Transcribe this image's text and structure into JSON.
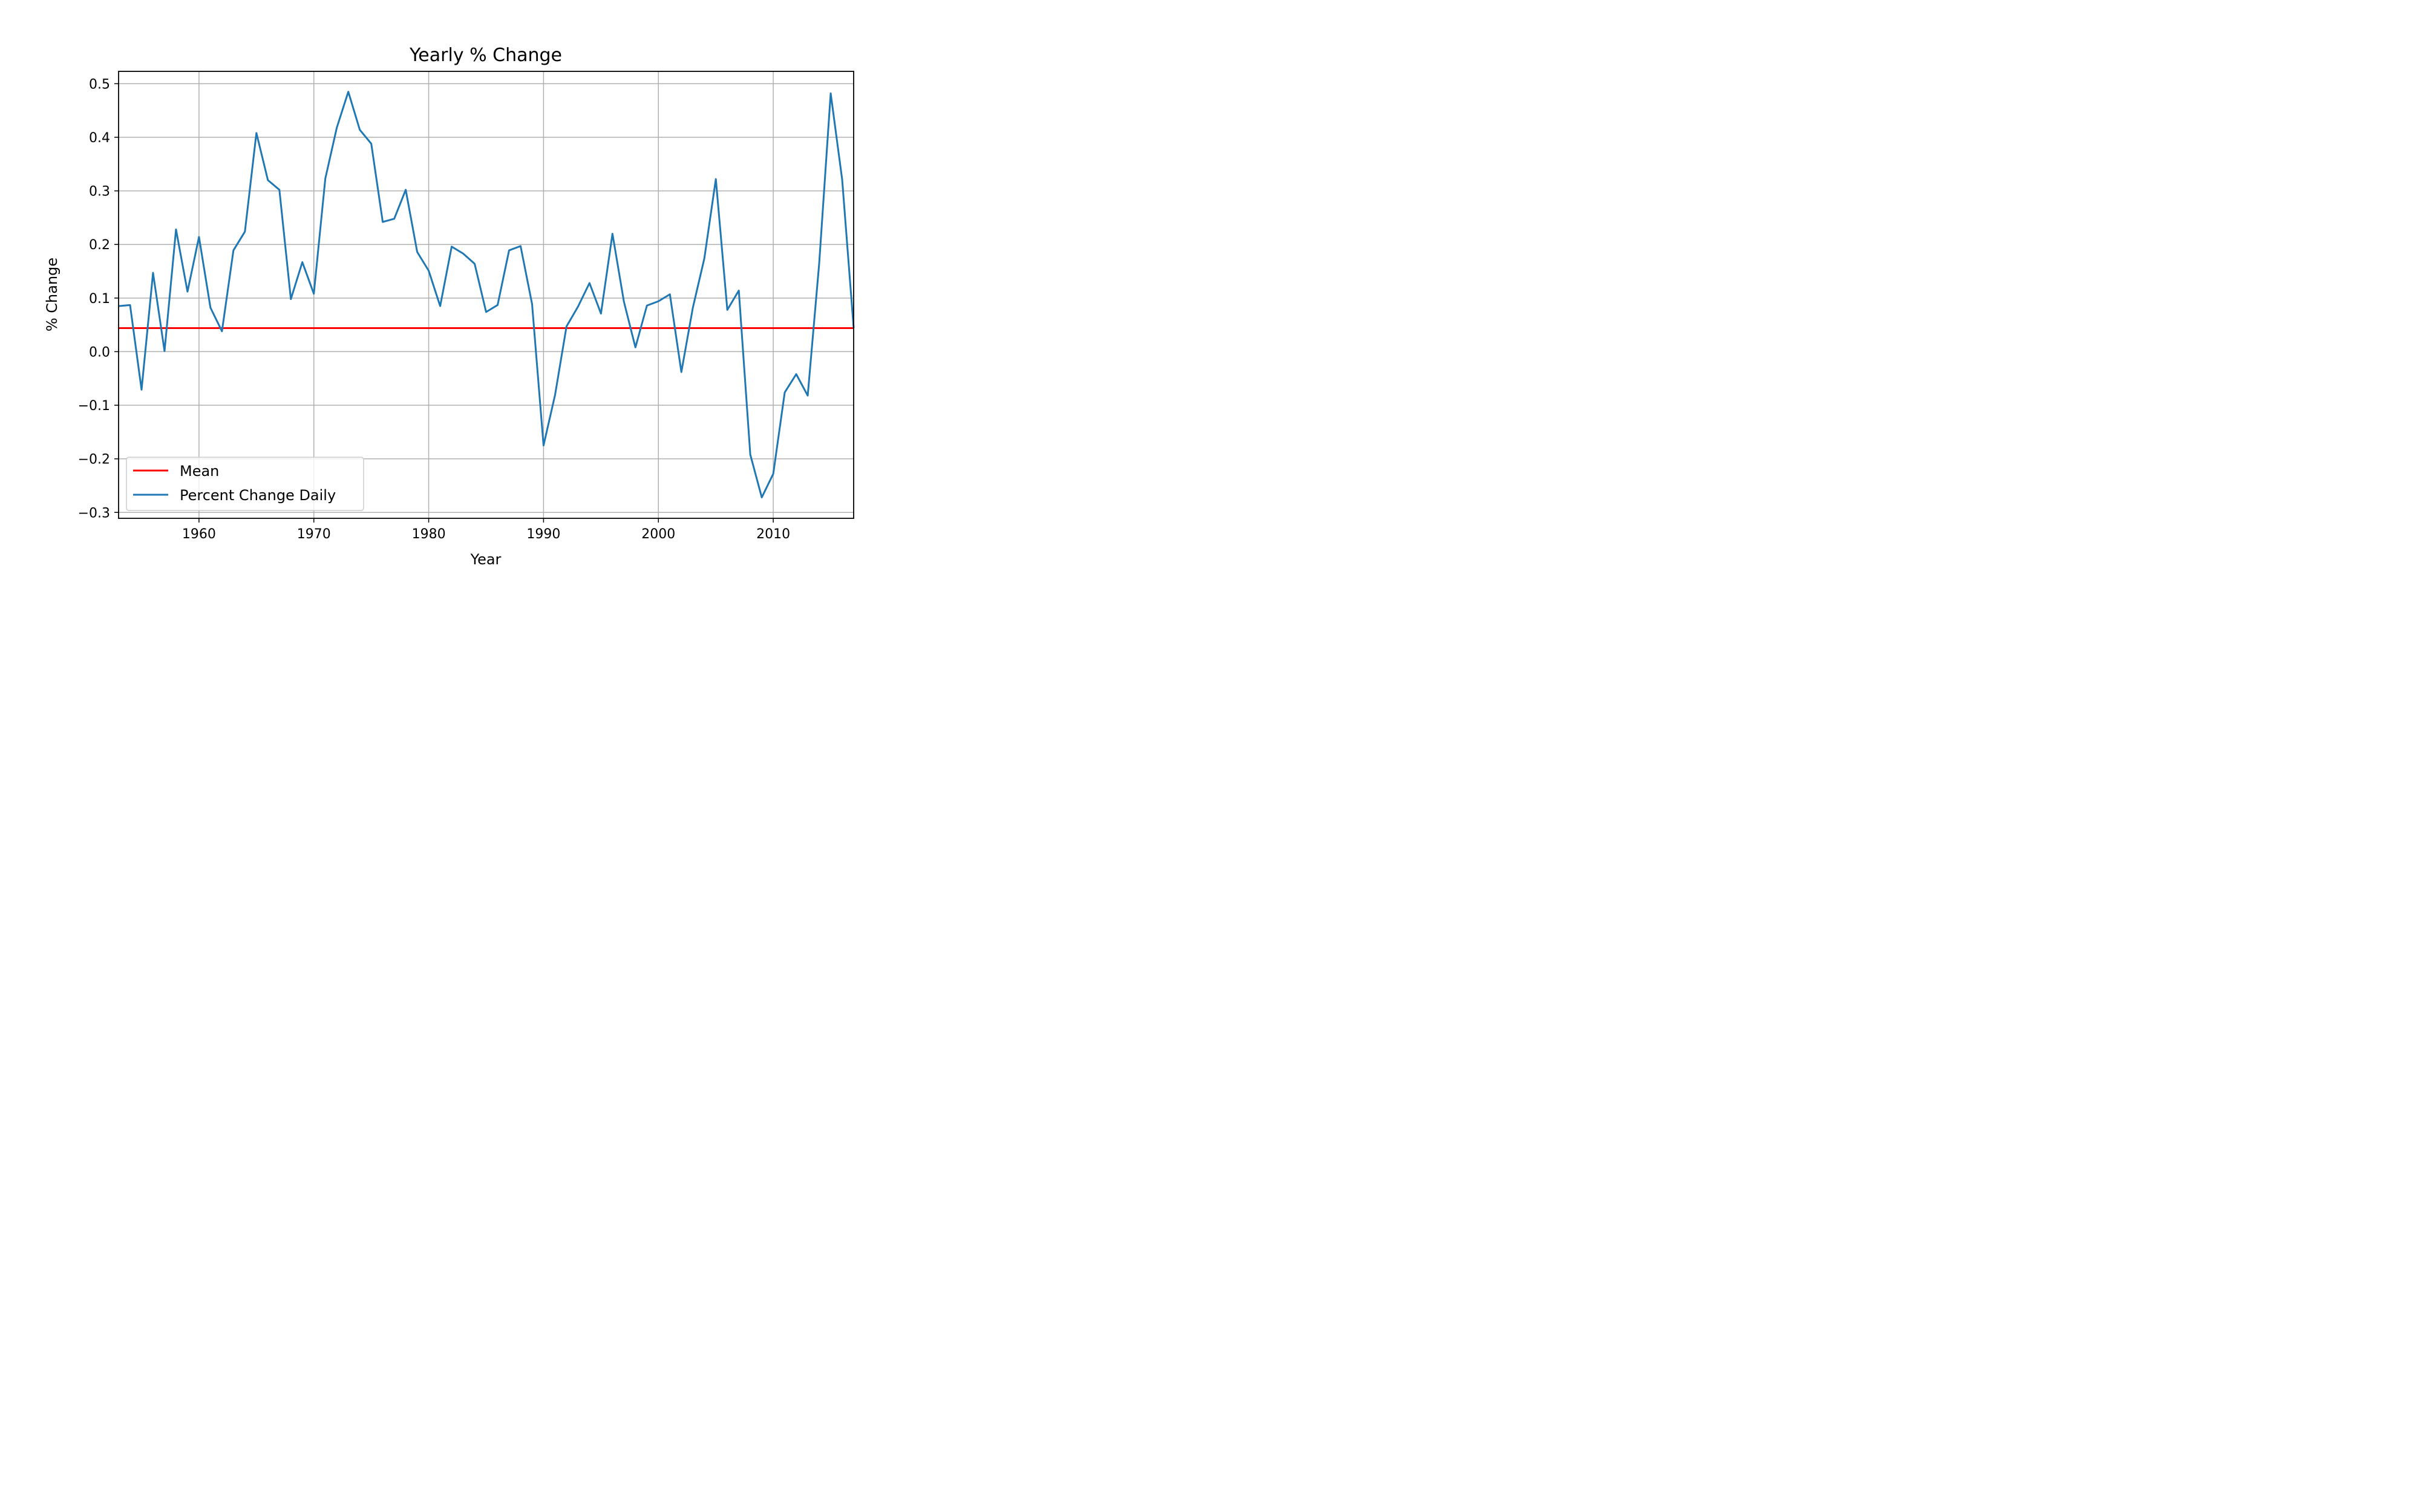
{
  "chart_data": {
    "type": "line",
    "title": "Yearly % Change",
    "xlabel": "Year",
    "ylabel": "% Change",
    "xlim": [
      1953,
      2017
    ],
    "ylim": [
      -0.311,
      0.523
    ],
    "xticks": [
      1960,
      1970,
      1980,
      1990,
      2000,
      2010
    ],
    "yticks": [
      -0.3,
      -0.2,
      -0.1,
      0.0,
      0.1,
      0.2,
      0.3,
      0.4,
      0.5
    ],
    "ytick_labels": [
      "−0.3",
      "−0.2",
      "−0.1",
      "0.0",
      "0.1",
      "0.2",
      "0.3",
      "0.4",
      "0.5"
    ],
    "grid": true,
    "legend_position": "lower-left",
    "series": [
      {
        "name": "Mean",
        "color": "#ff0000",
        "x": [
          1953,
          2017
        ],
        "y": [
          0.044,
          0.044
        ]
      },
      {
        "name": "Percent Change Daily",
        "color": "#1f77b4",
        "x": [
          1953,
          1954,
          1955,
          1956,
          1957,
          1958,
          1959,
          1960,
          1961,
          1962,
          1963,
          1964,
          1965,
          1966,
          1967,
          1968,
          1969,
          1970,
          1971,
          1972,
          1973,
          1974,
          1975,
          1976,
          1977,
          1978,
          1979,
          1980,
          1981,
          1982,
          1983,
          1984,
          1985,
          1986,
          1987,
          1988,
          1989,
          1990,
          1991,
          1992,
          1993,
          1994,
          1995,
          1996,
          1997,
          1998,
          1999,
          2000,
          2001,
          2002,
          2003,
          2004,
          2005,
          2006,
          2007,
          2008,
          2009,
          2010,
          2011,
          2012,
          2013,
          2014,
          2015,
          2016,
          2017
        ],
        "y": [
          0.085,
          0.087,
          -0.071,
          0.147,
          0.001,
          0.228,
          0.112,
          0.214,
          0.082,
          0.038,
          0.189,
          0.224,
          0.408,
          0.32,
          0.302,
          0.098,
          0.167,
          0.108,
          0.323,
          0.418,
          0.485,
          0.414,
          0.388,
          0.242,
          0.248,
          0.302,
          0.186,
          0.151,
          0.085,
          0.196,
          0.183,
          0.164,
          0.074,
          0.087,
          0.189,
          0.197,
          0.089,
          -0.175,
          -0.081,
          0.047,
          0.084,
          0.128,
          0.071,
          0.22,
          0.093,
          0.008,
          0.086,
          0.094,
          0.107,
          -0.038,
          0.082,
          0.174,
          0.322,
          0.078,
          0.114,
          -0.192,
          -0.272,
          -0.228,
          -0.076,
          -0.042,
          -0.082,
          0.165,
          0.482,
          0.321,
          0.044
        ]
      }
    ]
  }
}
